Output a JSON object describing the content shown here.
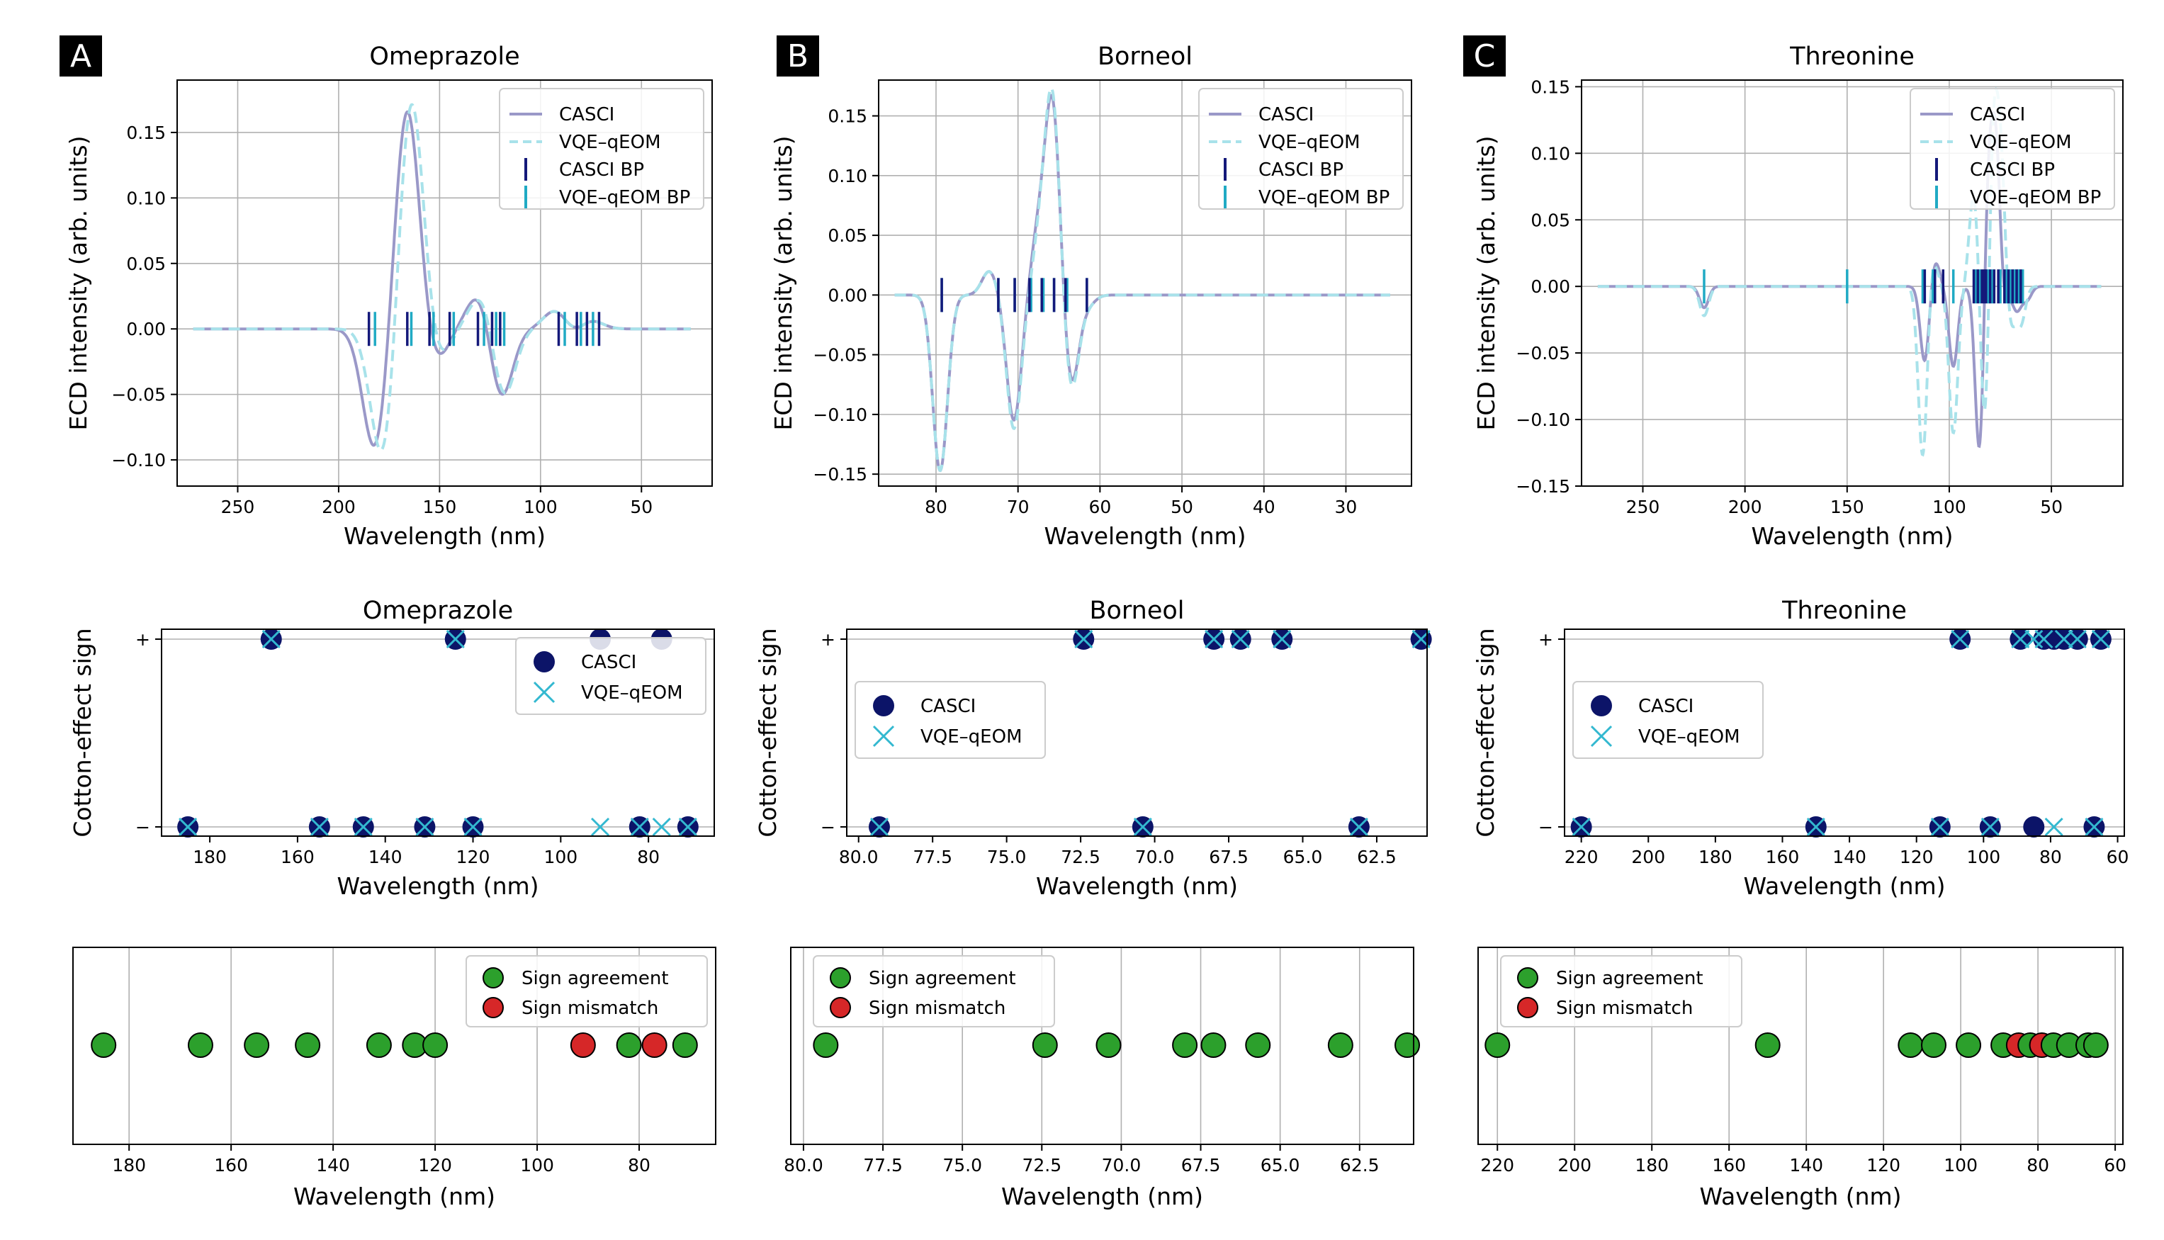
{
  "colors": {
    "casci_line": "#9a98c8",
    "vqe_line": "#a8e2ea",
    "casci_bp": "#14197a",
    "vqe_bp": "#20aac4",
    "casci_marker": "#0c1468",
    "vqe_marker": "#33b8d0",
    "agree": "#2ca02c",
    "mismatch": "#d62728",
    "grid": "#b0b0b0"
  },
  "legend": {
    "casci": "CASCI",
    "vqe": "VQE–qEOM",
    "casci_bp": "CASCI BP",
    "vqe_bp": "VQE–qEOM BP",
    "agree": "Sign agreement",
    "mismatch": "Sign mismatch"
  },
  "chart_data": [
    {
      "panel": "A",
      "molecule": "Omeprazole",
      "spectrum": {
        "type": "line",
        "title": "Omeprazole",
        "xlabel": "Wavelength (nm)",
        "ylabel": "ECD intensity (arb. units)",
        "xlim": [
          280,
          15
        ],
        "ylim": [
          -0.12,
          0.19
        ],
        "xticks": [
          250,
          200,
          150,
          100,
          50
        ],
        "yticks": [
          -0.1,
          -0.05,
          0.0,
          0.05,
          0.1,
          0.15
        ],
        "ytick_labels": [
          "−0.10",
          "−0.05",
          "0.00",
          "0.05",
          "0.10",
          "0.15"
        ],
        "width": 6,
        "series": [
          {
            "name": "CASCI",
            "peaks": [
              [
                182,
                -0.093
              ],
              [
                166,
                0.17
              ],
              [
                152,
                -0.025
              ],
              [
                133,
                0.012
              ],
              [
                126,
                0.04
              ],
              [
                121,
                -0.075
              ],
              [
                92,
                0.016
              ],
              [
                84,
                -0.008
              ],
              [
                76,
                0.008
              ]
            ]
          },
          {
            "name": "VQE–qEOM",
            "peaks": [
              [
                178,
                -0.102
              ],
              [
                164,
                0.18
              ],
              [
                151,
                -0.024
              ],
              [
                132,
                0.012
              ],
              [
                124,
                0.051
              ],
              [
                120,
                -0.085
              ],
              [
                92,
                0.016
              ],
              [
                84,
                -0.008
              ],
              [
                76,
                0.008
              ]
            ]
          }
        ],
        "casci_bp": [
          185,
          166,
          155,
          145,
          131,
          124,
          120,
          91,
          82,
          77,
          71
        ],
        "vqe_bp": [
          182,
          164,
          153,
          143,
          128,
          122,
          118,
          88,
          80,
          74
        ]
      },
      "cotton": {
        "type": "scatter",
        "title": "Omeprazole",
        "xlabel": "Wavelength (nm)",
        "ylabel": "Cotton-effect sign",
        "xlim": [
          191,
          65
        ],
        "xticks": [
          180,
          160,
          140,
          120,
          100,
          80
        ],
        "legend_loc": "upper right",
        "casci": [
          [
            185,
            -1
          ],
          [
            166,
            1
          ],
          [
            155,
            -1
          ],
          [
            145,
            -1
          ],
          [
            131,
            -1
          ],
          [
            124,
            1
          ],
          [
            120,
            -1
          ],
          [
            91,
            1
          ],
          [
            82,
            -1
          ],
          [
            77,
            1
          ],
          [
            71,
            -1
          ]
        ],
        "vqe": [
          [
            185,
            -1
          ],
          [
            166,
            1
          ],
          [
            155,
            -1
          ],
          [
            145,
            -1
          ],
          [
            131,
            -1
          ],
          [
            124,
            1
          ],
          [
            120,
            -1
          ],
          [
            91,
            -1
          ],
          [
            82,
            -1
          ],
          [
            77,
            -1
          ],
          [
            71,
            -1
          ]
        ]
      },
      "agreement": {
        "type": "scatter",
        "xlabel": "Wavelength (nm)",
        "xlim": [
          191,
          65
        ],
        "xticks": [
          180,
          160,
          140,
          120,
          100,
          80
        ],
        "legend_loc": "upper right",
        "x": [
          185,
          166,
          155,
          145,
          131,
          124,
          120,
          91,
          82,
          77,
          71
        ],
        "agree": [
          true,
          true,
          true,
          true,
          true,
          true,
          true,
          false,
          true,
          false,
          true
        ]
      }
    },
    {
      "panel": "B",
      "molecule": "Borneol",
      "spectrum": {
        "type": "line",
        "title": "Borneol",
        "xlabel": "Wavelength (nm)",
        "ylabel": "ECD intensity (arb. units)",
        "xlim": [
          87,
          22
        ],
        "ylim": [
          -0.16,
          0.18
        ],
        "xticks": [
          80,
          70,
          60,
          50,
          40,
          30
        ],
        "yticks": [
          -0.15,
          -0.1,
          -0.05,
          0.0,
          0.05,
          0.1,
          0.15
        ],
        "ytick_labels": [
          "−0.15",
          "−0.10",
          "−0.05",
          "0.00",
          "0.05",
          "0.10",
          "0.15"
        ],
        "width": 0.9,
        "series": [
          {
            "name": "CASCI",
            "peaks": [
              [
                79.5,
                -0.147
              ],
              [
                73.5,
                0.02
              ],
              [
                70.5,
                -0.105
              ],
              [
                67.5,
                0.05
              ],
              [
                65.8,
                0.16
              ],
              [
                63.5,
                -0.075
              ],
              [
                61.5,
                -0.008
              ]
            ]
          },
          {
            "name": "VQE–qEOM",
            "peaks": [
              [
                79.5,
                -0.147
              ],
              [
                73.5,
                0.02
              ],
              [
                70.5,
                -0.112
              ],
              [
                67.3,
                0.045
              ],
              [
                65.8,
                0.163
              ],
              [
                63.5,
                -0.08
              ],
              [
                61.5,
                -0.008
              ]
            ]
          }
        ],
        "casci_bp": [
          79.3,
          72.4,
          70.4,
          68.6,
          67.1,
          65.6,
          64.2,
          61.6
        ],
        "vqe_bp": [
          79.3,
          72.4,
          70.4,
          68.4,
          66.9,
          65.6,
          64.0,
          61.6
        ]
      },
      "cotton": {
        "type": "scatter",
        "title": "Borneol",
        "xlabel": "Wavelength (nm)",
        "ylabel": "Cotton-effect sign",
        "xlim": [
          80.4,
          60.8
        ],
        "xticks": [
          80.0,
          77.5,
          75.0,
          72.5,
          70.0,
          67.5,
          65.0,
          62.5
        ],
        "legend_loc": "center left",
        "casci": [
          [
            79.3,
            -1
          ],
          [
            72.4,
            1
          ],
          [
            70.4,
            -1
          ],
          [
            68.0,
            1
          ],
          [
            67.1,
            1
          ],
          [
            65.7,
            1
          ],
          [
            63.1,
            -1
          ],
          [
            61.0,
            1
          ]
        ],
        "vqe": [
          [
            79.3,
            -1
          ],
          [
            72.4,
            1
          ],
          [
            70.4,
            -1
          ],
          [
            68.0,
            1
          ],
          [
            67.1,
            1
          ],
          [
            65.7,
            1
          ],
          [
            63.1,
            -1
          ],
          [
            61.0,
            1
          ]
        ]
      },
      "agreement": {
        "type": "scatter",
        "xlabel": "Wavelength (nm)",
        "xlim": [
          80.4,
          60.8
        ],
        "xticks": [
          80.0,
          77.5,
          75.0,
          72.5,
          70.0,
          67.5,
          65.0,
          62.5
        ],
        "legend_loc": "upper left",
        "x": [
          79.3,
          72.4,
          70.4,
          68.0,
          67.1,
          65.7,
          63.1,
          61.0
        ],
        "agree": [
          true,
          true,
          true,
          true,
          true,
          true,
          true,
          true
        ]
      }
    },
    {
      "panel": "C",
      "molecule": "Threonine",
      "spectrum": {
        "type": "line",
        "title": "Threonine",
        "xlabel": "Wavelength (nm)",
        "ylabel": "ECD intensity (arb. units)",
        "xlim": [
          280,
          15
        ],
        "ylim": [
          -0.15,
          0.155
        ],
        "xticks": [
          250,
          200,
          150,
          100,
          50
        ],
        "yticks": [
          -0.15,
          -0.1,
          -0.05,
          0.0,
          0.05,
          0.1,
          0.15
        ],
        "ytick_labels": [
          "−0.15",
          "−0.10",
          "−0.05",
          "0.00",
          "0.05",
          "0.10",
          "0.15"
        ],
        "width": 2.2,
        "series": [
          {
            "name": "CASCI",
            "peaks": [
              [
                220,
                -0.016
              ],
              [
                112,
                -0.057
              ],
              [
                107,
                0.02
              ],
              [
                98,
                -0.06
              ],
              [
                85,
                -0.135
              ],
              [
                81,
                0.092
              ],
              [
                77,
                0.11
              ],
              [
                74,
                -0.025
              ],
              [
                67,
                -0.018
              ],
              [
                62,
                -0.01
              ]
            ]
          },
          {
            "name": "VQE–qEOM",
            "peaks": [
              [
                220,
                -0.022
              ],
              [
                113,
                -0.128
              ],
              [
                108,
                0.02
              ],
              [
                98,
                -0.11
              ],
              [
                88,
                0.07
              ],
              [
                82,
                -0.138
              ],
              [
                79,
                0.14
              ],
              [
                75,
                0.1
              ],
              [
                70,
                -0.03
              ],
              [
                65,
                -0.028
              ]
            ]
          }
        ],
        "casci_bp": [
          112,
          107,
          103,
          88,
          86,
          84,
          83,
          82,
          80,
          78,
          76,
          73,
          71,
          69,
          67,
          65
        ],
        "vqe_bp": [
          220,
          150,
          113,
          108,
          98,
          87,
          85,
          81,
          79,
          75,
          72,
          70,
          68,
          66,
          64
        ]
      },
      "cotton": {
        "type": "scatter",
        "title": "Threonine",
        "xlabel": "Wavelength (nm)",
        "ylabel": "Cotton-effect sign",
        "xlim": [
          225,
          58
        ],
        "xticks": [
          220,
          200,
          180,
          160,
          140,
          120,
          100,
          80,
          60
        ],
        "legend_loc": "center left",
        "casci": [
          [
            220,
            -1
          ],
          [
            150,
            -1
          ],
          [
            113,
            -1
          ],
          [
            107,
            1
          ],
          [
            98,
            -1
          ],
          [
            89,
            1
          ],
          [
            85,
            -1
          ],
          [
            82,
            1
          ],
          [
            79,
            1
          ],
          [
            76,
            1
          ],
          [
            72,
            1
          ],
          [
            67,
            -1
          ],
          [
            65,
            1
          ]
        ],
        "vqe": [
          [
            220,
            -1
          ],
          [
            150,
            -1
          ],
          [
            113,
            -1
          ],
          [
            107,
            1
          ],
          [
            98,
            -1
          ],
          [
            89,
            1
          ],
          [
            85,
            1
          ],
          [
            82,
            1
          ],
          [
            79,
            -1
          ],
          [
            76,
            1
          ],
          [
            72,
            1
          ],
          [
            67,
            -1
          ],
          [
            65,
            1
          ]
        ]
      },
      "agreement": {
        "type": "scatter",
        "xlabel": "Wavelength (nm)",
        "xlim": [
          225,
          58
        ],
        "xticks": [
          220,
          200,
          180,
          160,
          140,
          120,
          100,
          80,
          60
        ],
        "legend_loc": "upper left",
        "x": [
          220,
          150,
          113,
          107,
          98,
          89,
          85,
          82,
          79,
          76,
          72,
          67,
          65
        ],
        "agree": [
          true,
          true,
          true,
          true,
          true,
          true,
          false,
          true,
          false,
          true,
          true,
          true,
          true
        ]
      }
    }
  ]
}
